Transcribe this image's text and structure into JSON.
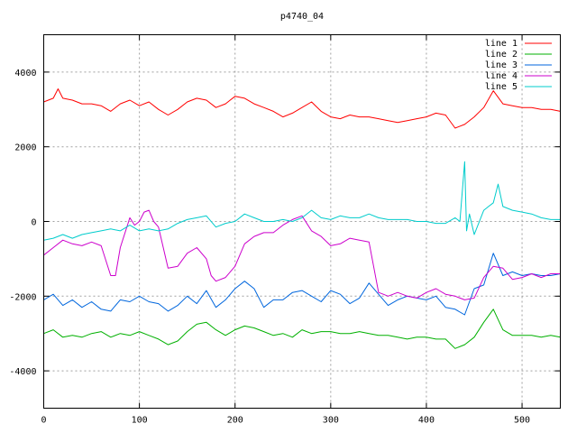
{
  "chart_data": {
    "type": "line",
    "title": "p4740_04",
    "xlabel": "",
    "ylabel": "",
    "xlim": [
      0,
      540
    ],
    "ylim": [
      -5000,
      5000
    ],
    "xticks": [
      0,
      100,
      200,
      300,
      400,
      500
    ],
    "yticks": [
      -4000,
      -2000,
      0,
      2000,
      4000
    ],
    "grid": true,
    "legend_position": "top-right",
    "series": [
      {
        "name": "line 1",
        "color": "#ff0000",
        "x": [
          0,
          10,
          15,
          20,
          30,
          40,
          50,
          60,
          70,
          80,
          90,
          100,
          110,
          120,
          130,
          140,
          150,
          160,
          170,
          180,
          190,
          200,
          210,
          220,
          230,
          240,
          250,
          260,
          270,
          280,
          290,
          300,
          310,
          320,
          330,
          340,
          350,
          360,
          370,
          380,
          390,
          400,
          410,
          420,
          430,
          440,
          450,
          460,
          470,
          480,
          490,
          500,
          510,
          520,
          530,
          540
        ],
        "y": [
          3200,
          3300,
          3550,
          3300,
          3250,
          3150,
          3150,
          3100,
          2950,
          3150,
          3250,
          3100,
          3200,
          3000,
          2850,
          3000,
          3200,
          3300,
          3250,
          3050,
          3150,
          3350,
          3300,
          3150,
          3050,
          2950,
          2800,
          2900,
          3050,
          3200,
          2950,
          2800,
          2750,
          2850,
          2800,
          2800,
          2750,
          2700,
          2650,
          2700,
          2750,
          2800,
          2900,
          2850,
          2500,
          2600,
          2800,
          3050,
          3500,
          3150,
          3100,
          3050,
          3050,
          3000,
          3000,
          2950
        ]
      },
      {
        "name": "line 2",
        "color": "#00b000",
        "x": [
          0,
          10,
          20,
          30,
          40,
          50,
          60,
          70,
          80,
          90,
          100,
          110,
          120,
          130,
          140,
          150,
          160,
          170,
          180,
          190,
          200,
          210,
          220,
          230,
          240,
          250,
          260,
          270,
          280,
          290,
          300,
          310,
          320,
          330,
          340,
          350,
          360,
          370,
          380,
          390,
          400,
          410,
          420,
          430,
          440,
          450,
          460,
          470,
          480,
          490,
          500,
          510,
          520,
          530,
          540
        ],
        "y": [
          -3000,
          -2900,
          -3100,
          -3050,
          -3100,
          -3000,
          -2950,
          -3100,
          -3000,
          -3050,
          -2950,
          -3050,
          -3150,
          -3300,
          -3200,
          -2950,
          -2750,
          -2700,
          -2900,
          -3050,
          -2900,
          -2800,
          -2850,
          -2950,
          -3050,
          -3000,
          -3100,
          -2900,
          -3000,
          -2950,
          -2950,
          -3000,
          -3000,
          -2950,
          -3000,
          -3050,
          -3050,
          -3100,
          -3150,
          -3100,
          -3100,
          -3150,
          -3150,
          -3400,
          -3300,
          -3100,
          -2700,
          -2350,
          -2900,
          -3050,
          -3050,
          -3050,
          -3100,
          -3050,
          -3100
        ]
      },
      {
        "name": "line 3",
        "color": "#0066dd",
        "x": [
          0,
          10,
          20,
          30,
          40,
          50,
          60,
          70,
          80,
          90,
          100,
          110,
          120,
          130,
          140,
          150,
          160,
          170,
          180,
          190,
          200,
          210,
          220,
          230,
          240,
          250,
          260,
          270,
          280,
          290,
          300,
          310,
          320,
          330,
          340,
          350,
          360,
          370,
          380,
          390,
          400,
          410,
          420,
          430,
          440,
          450,
          460,
          470,
          480,
          490,
          500,
          510,
          520,
          530,
          540
        ],
        "y": [
          -2100,
          -1950,
          -2250,
          -2100,
          -2300,
          -2150,
          -2350,
          -2400,
          -2100,
          -2150,
          -2000,
          -2150,
          -2200,
          -2400,
          -2250,
          -2000,
          -2200,
          -1850,
          -2300,
          -2100,
          -1800,
          -1600,
          -1800,
          -2300,
          -2100,
          -2100,
          -1900,
          -1850,
          -2000,
          -2150,
          -1850,
          -1950,
          -2200,
          -2050,
          -1650,
          -1950,
          -2250,
          -2100,
          -2000,
          -2050,
          -2100,
          -2000,
          -2300,
          -2350,
          -2500,
          -1800,
          -1700,
          -850,
          -1450,
          -1350,
          -1450,
          -1400,
          -1450,
          -1450,
          -1400
        ]
      },
      {
        "name": "line 4",
        "color": "#cc00cc",
        "x": [
          0,
          10,
          20,
          30,
          40,
          50,
          60,
          70,
          75,
          80,
          90,
          95,
          100,
          105,
          110,
          115,
          120,
          125,
          130,
          140,
          150,
          160,
          170,
          175,
          180,
          190,
          200,
          210,
          220,
          230,
          240,
          250,
          260,
          270,
          280,
          290,
          300,
          310,
          320,
          330,
          340,
          350,
          355,
          360,
          370,
          380,
          390,
          400,
          410,
          420,
          430,
          440,
          450,
          460,
          470,
          480,
          490,
          500,
          510,
          520,
          530,
          540
        ],
        "y": [
          -900,
          -700,
          -500,
          -600,
          -650,
          -550,
          -650,
          -1450,
          -1450,
          -700,
          100,
          -100,
          0,
          250,
          300,
          0,
          -150,
          -700,
          -1250,
          -1200,
          -850,
          -700,
          -1000,
          -1450,
          -1600,
          -1500,
          -1200,
          -600,
          -400,
          -300,
          -300,
          -100,
          50,
          150,
          -250,
          -400,
          -650,
          -600,
          -450,
          -500,
          -550,
          -1900,
          -1950,
          -2000,
          -1900,
          -2000,
          -2050,
          -1900,
          -1800,
          -1950,
          -2000,
          -2100,
          -2050,
          -1500,
          -1200,
          -1250,
          -1550,
          -1500,
          -1400,
          -1500,
          -1400,
          -1400
        ]
      },
      {
        "name": "line 5",
        "color": "#00cccc",
        "x": [
          0,
          10,
          20,
          30,
          40,
          50,
          60,
          70,
          80,
          90,
          100,
          110,
          120,
          130,
          140,
          150,
          160,
          170,
          180,
          190,
          200,
          210,
          220,
          230,
          240,
          250,
          260,
          270,
          280,
          290,
          300,
          310,
          320,
          330,
          340,
          350,
          360,
          370,
          380,
          390,
          400,
          410,
          420,
          430,
          435,
          440,
          442,
          445,
          450,
          460,
          465,
          470,
          475,
          480,
          490,
          500,
          510,
          520,
          530,
          540
        ],
        "y": [
          -500,
          -450,
          -350,
          -450,
          -350,
          -300,
          -250,
          -200,
          -250,
          -100,
          -250,
          -200,
          -250,
          -200,
          -50,
          50,
          100,
          150,
          -150,
          -50,
          0,
          200,
          100,
          0,
          0,
          50,
          0,
          100,
          300,
          100,
          50,
          150,
          100,
          100,
          200,
          100,
          50,
          50,
          50,
          0,
          0,
          -50,
          -50,
          100,
          0,
          1600,
          -250,
          200,
          -350,
          300,
          400,
          500,
          1000,
          400,
          300,
          250,
          200,
          100,
          50,
          50
        ]
      }
    ]
  }
}
